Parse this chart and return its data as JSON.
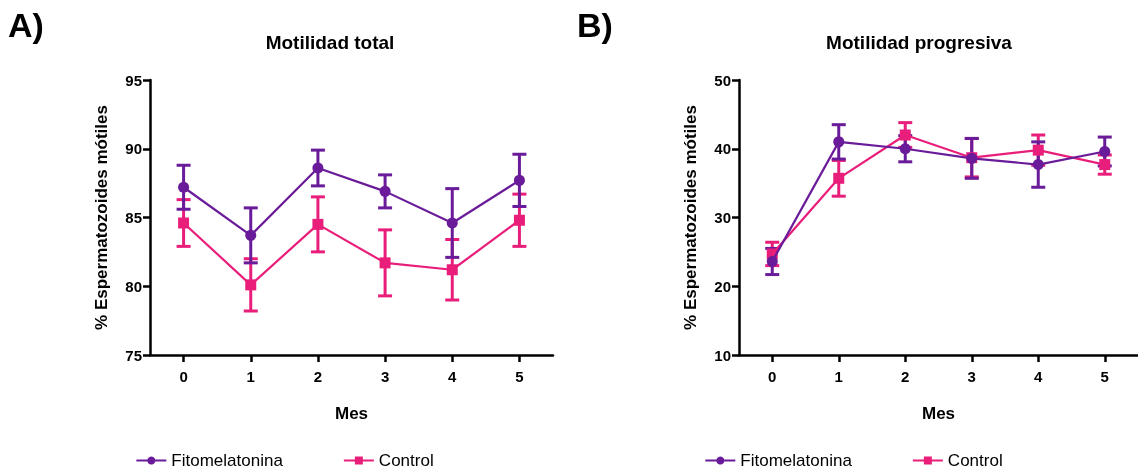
{
  "chart_data": [
    {
      "type": "line",
      "title": "Motilidad total",
      "annotations": [
        "A)"
      ],
      "xlabel": "Mes",
      "ylabel": "% Espermatozoides mótiles",
      "categories": [
        "0",
        "1",
        "2",
        "3",
        "4",
        "5"
      ],
      "ylim": [
        75,
        95
      ],
      "yticks": [
        75,
        80,
        85,
        90,
        95
      ],
      "grid": false,
      "legend": "bottom",
      "series": [
        {
          "name": "Fitomelatonina",
          "color": "#6a1b9a",
          "marker": "circle",
          "values": [
            87.2,
            83.7,
            88.6,
            86.9,
            84.6,
            87.7
          ],
          "errors": [
            1.6,
            2.0,
            1.3,
            1.2,
            2.5,
            1.9
          ]
        },
        {
          "name": "Control",
          "color": "#e91e7a",
          "marker": "square",
          "values": [
            84.6,
            80.1,
            84.5,
            81.7,
            81.2,
            84.8
          ],
          "errors": [
            1.7,
            1.9,
            2.0,
            2.4,
            2.2,
            1.9
          ]
        }
      ]
    },
    {
      "type": "line",
      "title": "Motilidad progresiva",
      "annotations": [
        "B)"
      ],
      "xlabel": "Mes",
      "ylabel": "% Espermatozoides mótiles",
      "categories": [
        "0",
        "1",
        "2",
        "3",
        "4",
        "5"
      ],
      "ylim": [
        10,
        50
      ],
      "yticks": [
        10,
        20,
        30,
        40,
        50
      ],
      "grid": false,
      "legend": "bottom",
      "series": [
        {
          "name": "Fitomelatonina",
          "color": "#6a1b9a",
          "marker": "circle",
          "values": [
            23.6,
            41.0,
            40.0,
            38.6,
            37.7,
            39.6
          ],
          "errors": [
            1.9,
            2.5,
            1.9,
            2.9,
            3.3,
            2.1
          ]
        },
        {
          "name": "Control",
          "color": "#e91e7a",
          "marker": "square",
          "values": [
            24.7,
            35.7,
            42.0,
            38.7,
            39.8,
            37.7
          ],
          "errors": [
            1.7,
            2.6,
            1.8,
            2.8,
            2.2,
            1.4
          ]
        }
      ]
    }
  ]
}
